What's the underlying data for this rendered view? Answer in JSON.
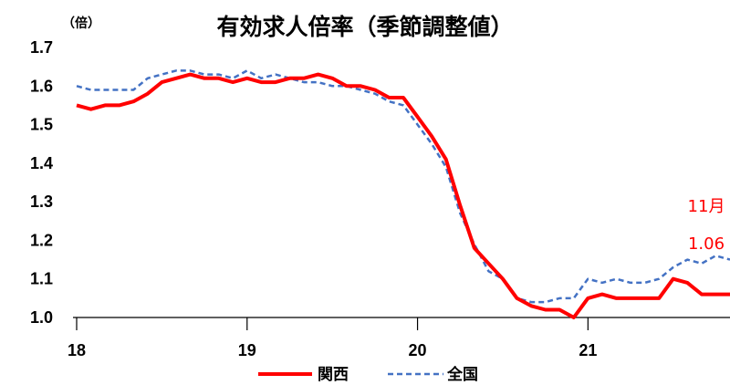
{
  "chart_data": {
    "type": "line",
    "title": "有効求人倍率（季節調整値）",
    "ylabel": "（倍）",
    "xlabel": "",
    "ylim": [
      1.0,
      1.7
    ],
    "yticks": [
      "1.0",
      "1.1",
      "1.2",
      "1.3",
      "1.4",
      "1.5",
      "1.6",
      "1.7"
    ],
    "xlim": [
      0,
      46
    ],
    "xticks": [
      {
        "pos": 0,
        "label": "18"
      },
      {
        "pos": 12,
        "label": "19"
      },
      {
        "pos": 24,
        "label": "20"
      },
      {
        "pos": 36,
        "label": "21"
      }
    ],
    "grid": false,
    "legend": "bottom",
    "series": [
      {
        "name": "関西",
        "color": "#ff0000",
        "style": "solid",
        "values": [
          1.55,
          1.54,
          1.55,
          1.55,
          1.56,
          1.58,
          1.61,
          1.62,
          1.63,
          1.62,
          1.62,
          1.61,
          1.62,
          1.61,
          1.61,
          1.62,
          1.62,
          1.63,
          1.62,
          1.6,
          1.6,
          1.59,
          1.57,
          1.57,
          1.52,
          1.47,
          1.41,
          1.29,
          1.18,
          1.14,
          1.1,
          1.05,
          1.03,
          1.02,
          1.02,
          1.0,
          1.05,
          1.06,
          1.05,
          1.05,
          1.05,
          1.05,
          1.1,
          1.09,
          1.06,
          1.06,
          1.06
        ]
      },
      {
        "name": "全国",
        "color": "#4472c4",
        "style": "dashed",
        "values": [
          1.6,
          1.59,
          1.59,
          1.59,
          1.59,
          1.62,
          1.63,
          1.64,
          1.64,
          1.63,
          1.63,
          1.62,
          1.64,
          1.62,
          1.63,
          1.62,
          1.61,
          1.61,
          1.6,
          1.6,
          1.59,
          1.58,
          1.56,
          1.55,
          1.5,
          1.45,
          1.39,
          1.27,
          1.19,
          1.12,
          1.1,
          1.05,
          1.04,
          1.04,
          1.05,
          1.05,
          1.1,
          1.09,
          1.1,
          1.09,
          1.09,
          1.1,
          1.13,
          1.15,
          1.14,
          1.16,
          1.15
        ]
      }
    ],
    "annotations": [
      "11月",
      "1.06"
    ]
  }
}
